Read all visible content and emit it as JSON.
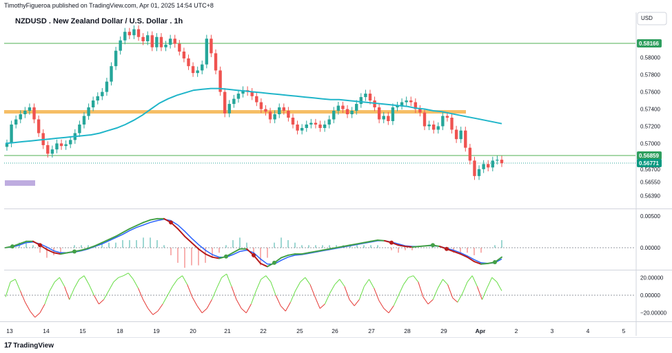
{
  "header": {
    "published": "TimothyFigueroa published on TradingView.com, Apr 01, 2025 14:54 UTC+8",
    "title": "NZDUSD . New Zealand Dollar / U.S. Dollar . 1h",
    "currency": "USD"
  },
  "footer": {
    "brand": "TradingView",
    "logo": "17"
  },
  "colors": {
    "up": "#26a69a",
    "down": "#ef5350",
    "sma": "#1fb5c9",
    "resistance_zone": "#f5b34a",
    "hline": "#4caf50",
    "tag_green": "#2e9e5e",
    "tag_teal": "#089981",
    "macd_blue": "#2962ff",
    "signal_red": "#b71c1c",
    "rsi_green": "#66dd44",
    "rsi_red": "#e53935",
    "purple_box": "#b39ddb"
  },
  "chart_data": {
    "type": "line",
    "x_ticks": [
      "13",
      "14",
      "15",
      "18",
      "19",
      "20",
      "21",
      "22",
      "25",
      "26",
      "27",
      "28",
      "29",
      "Apr",
      "2",
      "3",
      "4",
      "5"
    ],
    "price_axis": {
      "ticks": [
        "0.58000",
        "0.57800",
        "0.57600",
        "0.57400",
        "0.57200",
        "0.57000",
        "0.56700",
        "0.56550",
        "0.56390"
      ],
      "ylim": [
        0.5625,
        0.5835
      ]
    },
    "price_tags": [
      {
        "label": "0.58166",
        "value": 0.58166,
        "color": "#2e9e5e"
      },
      {
        "label": "0.56859",
        "value": 0.56859,
        "color": "#2e9e5e"
      },
      {
        "label": "0.56771",
        "value": 0.56771,
        "color": "#089981"
      }
    ],
    "price_close": [
      0.57,
      0.5722,
      0.5728,
      0.5734,
      0.5738,
      0.5742,
      0.5728,
      0.5712,
      0.5698,
      0.5688,
      0.5693,
      0.57,
      0.5697,
      0.5699,
      0.5704,
      0.5712,
      0.5722,
      0.5732,
      0.5742,
      0.575,
      0.5755,
      0.576,
      0.5772,
      0.579,
      0.5808,
      0.582,
      0.583,
      0.5826,
      0.5833,
      0.5824,
      0.5819,
      0.5826,
      0.5812,
      0.5824,
      0.5812,
      0.5815,
      0.5822,
      0.5816,
      0.5807,
      0.5799,
      0.579,
      0.5782,
      0.5785,
      0.5792,
      0.5822,
      0.5805,
      0.5785,
      0.576,
      0.5735,
      0.5746,
      0.5752,
      0.5758,
      0.5762,
      0.576,
      0.5755,
      0.5748,
      0.574,
      0.5737,
      0.5728,
      0.5734,
      0.5742,
      0.5738,
      0.573,
      0.5722,
      0.5715,
      0.5718,
      0.5722,
      0.5724,
      0.5722,
      0.5718,
      0.5722,
      0.5728,
      0.5738,
      0.5744,
      0.574,
      0.5734,
      0.5738,
      0.5746,
      0.5754,
      0.5758,
      0.575,
      0.5742,
      0.5728,
      0.5732,
      0.5726,
      0.5742,
      0.5744,
      0.5748,
      0.575,
      0.5748,
      0.574,
      0.5736,
      0.572,
      0.5722,
      0.5716,
      0.572,
      0.5732,
      0.573,
      0.5716,
      0.5705,
      0.5715,
      0.5695,
      0.568,
      0.5662,
      0.567,
      0.5676,
      0.5672,
      0.568,
      0.5681,
      0.5677
    ],
    "sma_200": [
      0.57,
      0.5701,
      0.5702,
      0.5703,
      0.5704,
      0.5705,
      0.5706,
      0.5707,
      0.5708,
      0.5709,
      0.571,
      0.5712,
      0.5715,
      0.5718,
      0.5722,
      0.5727,
      0.5733,
      0.574,
      0.5747,
      0.5752,
      0.5756,
      0.5759,
      0.5762,
      0.5763,
      0.5764,
      0.5764,
      0.5763,
      0.5762,
      0.5761,
      0.576,
      0.5759,
      0.5758,
      0.5757,
      0.5756,
      0.5755,
      0.5754,
      0.5753,
      0.5752,
      0.5751,
      0.5751,
      0.575,
      0.5749,
      0.5748,
      0.5747,
      0.5746,
      0.5745,
      0.5744,
      0.5743,
      0.5741,
      0.574,
      0.5738,
      0.5737,
      0.5735,
      0.5733,
      0.5731,
      0.5729,
      0.5727,
      0.5725,
      0.5723
    ],
    "macd": {
      "zero_label": "0.00000",
      "ticks": [
        "0.00500",
        "0.00000"
      ],
      "ylim": [
        -0.0035,
        0.006
      ],
      "macd": [
        0.0,
        0.0002,
        0.0006,
        0.001,
        0.001,
        0.0004,
        -0.0003,
        -0.0008,
        -0.001,
        -0.0008,
        -0.0006,
        -0.0004,
        -0.0001,
        0.0003,
        0.0008,
        0.0013,
        0.0018,
        0.0024,
        0.003,
        0.0035,
        0.004,
        0.0044,
        0.0046,
        0.0046,
        0.004,
        0.003,
        0.0018,
        0.0008,
        -0.0002,
        -0.001,
        -0.0015,
        -0.0017,
        -0.0014,
        -0.0008,
        -0.0002,
        -0.0002,
        -0.0012,
        -0.0025,
        -0.003,
        -0.0024,
        -0.0016,
        -0.0012,
        -0.001,
        -0.001,
        -0.0008,
        -0.0006,
        -0.0004,
        -0.0002,
        0.0,
        0.0002,
        0.0004,
        0.0006,
        0.0008,
        0.001,
        0.0012,
        0.0011,
        0.0008,
        0.0004,
        0.0002,
        0.0001,
        0.0002,
        0.0003,
        0.0004,
        0.0002,
        -0.0002,
        -0.0006,
        -0.001,
        -0.0015,
        -0.0022,
        -0.0026,
        -0.0025,
        -0.0023,
        -0.0015
      ],
      "signal": [
        0.0,
        0.0001,
        0.0004,
        0.0008,
        0.0009,
        0.0006,
        0.0001,
        -0.0005,
        -0.0008,
        -0.0008,
        -0.0007,
        -0.0005,
        -0.0002,
        0.0002,
        0.0006,
        0.0011,
        0.0016,
        0.0021,
        0.0027,
        0.0032,
        0.0036,
        0.004,
        0.0043,
        0.0045,
        0.0043,
        0.0036,
        0.0026,
        0.0015,
        0.0005,
        -0.0004,
        -0.0011,
        -0.0015,
        -0.0015,
        -0.0011,
        -0.0006,
        -0.0004,
        -0.0008,
        -0.0018,
        -0.0026,
        -0.0026,
        -0.002,
        -0.0015,
        -0.0012,
        -0.0011,
        -0.0009,
        -0.0007,
        -0.0005,
        -0.0003,
        -0.0001,
        0.0001,
        0.0003,
        0.0005,
        0.0007,
        0.0009,
        0.0011,
        0.0011,
        0.0009,
        0.0006,
        0.0003,
        0.0002,
        0.0002,
        0.0003,
        0.0003,
        0.0002,
        -0.0001,
        -0.0004,
        -0.0008,
        -0.0013,
        -0.0019,
        -0.0024,
        -0.0025,
        -0.0024,
        -0.0018
      ]
    },
    "rsi": {
      "ticks": [
        "20.00000",
        "0.00000",
        "−20.00000"
      ],
      "ylim": [
        -28,
        28
      ],
      "values": [
        -2,
        15,
        18,
        5,
        -8,
        -18,
        -25,
        -20,
        -10,
        5,
        15,
        20,
        10,
        -5,
        8,
        18,
        22,
        12,
        0,
        -10,
        -5,
        5,
        15,
        20,
        22,
        25,
        18,
        8,
        -5,
        -15,
        -22,
        -18,
        -10,
        0,
        10,
        18,
        22,
        12,
        -2,
        -12,
        -20,
        -15,
        -5,
        8,
        20,
        24,
        10,
        -5,
        -15,
        -20,
        -10,
        5,
        18,
        22,
        15,
        0,
        -12,
        -18,
        -8,
        5,
        15,
        20,
        12,
        -2,
        -15,
        -10,
        2,
        12,
        18,
        10,
        -5,
        -12,
        -5,
        10,
        18,
        8,
        -6,
        -15,
        -20,
        -12,
        0,
        12,
        20,
        22,
        15,
        -2,
        -10,
        -5,
        8,
        18,
        12,
        -3,
        -8,
        2,
        15,
        22,
        10,
        -5,
        8,
        20,
        15,
        5
      ]
    }
  }
}
